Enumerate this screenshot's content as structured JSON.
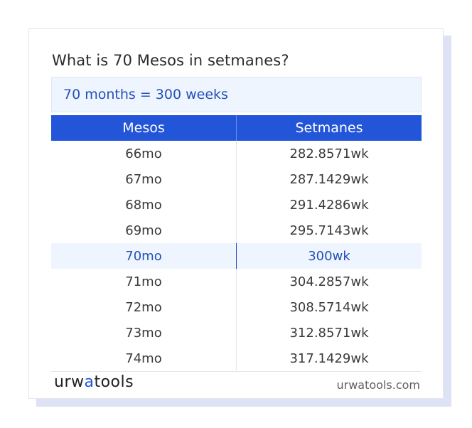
{
  "title": "What is 70 Mesos in setmanes?",
  "result": "70 months = 300 weeks",
  "table": {
    "headers": [
      "Mesos",
      "Setmanes"
    ],
    "rows": [
      [
        "66mo",
        "282.8571wk"
      ],
      [
        "67mo",
        "287.1429wk"
      ],
      [
        "68mo",
        "291.4286wk"
      ],
      [
        "69mo",
        "295.7143wk"
      ],
      [
        "70mo",
        "300wk"
      ],
      [
        "71mo",
        "304.2857wk"
      ],
      [
        "72mo",
        "308.5714wk"
      ],
      [
        "73mo",
        "312.8571wk"
      ],
      [
        "74mo",
        "317.1429wk"
      ]
    ],
    "highlight_row": 4
  },
  "logo": {
    "part1": "urw",
    "accent": "a",
    "part2": "tools"
  },
  "site": "urwatools.com",
  "colors": {
    "accent": "#2255d8",
    "highlight_bg": "#eef5ff",
    "highlight_text": "#2450b9"
  }
}
